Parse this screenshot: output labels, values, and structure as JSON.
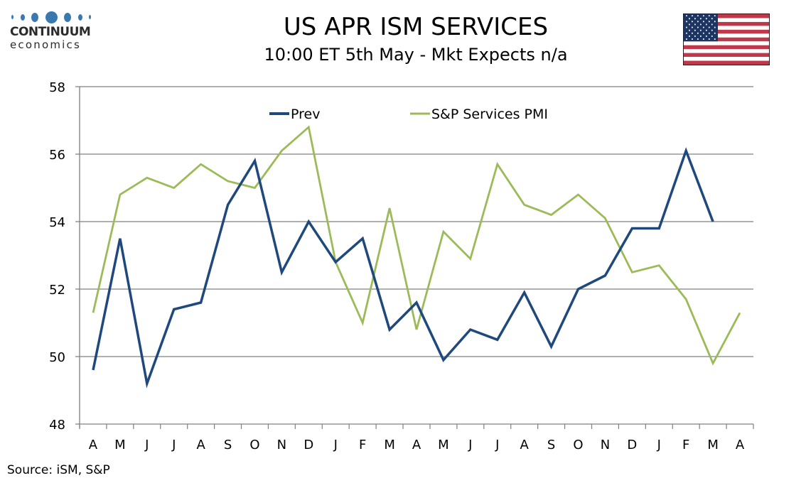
{
  "header": {
    "logo_top": "CONTINUUM",
    "logo_bottom": "economics",
    "title": "US APR ISM SERVICES",
    "subtitle": "10:00 ET 5th May - Mkt Expects n/a",
    "flag": "us-flag-icon"
  },
  "footer": {
    "source": "Source: iSM, S&P"
  },
  "colors": {
    "prev": "#1f497d",
    "sp": "#9bbb59",
    "grid": "#808080",
    "logo": "#3a78b0"
  },
  "chart_data": {
    "type": "line",
    "title": "US APR ISM SERVICES",
    "subtitle": "10:00 ET 5th May - Mkt Expects n/a",
    "xlabel": "",
    "ylabel": "",
    "ylim": [
      48,
      58
    ],
    "yticks": [
      48,
      50,
      52,
      54,
      56,
      58
    ],
    "grid": true,
    "legend_position": "top-center",
    "categories": [
      "A",
      "M",
      "J",
      "J",
      "A",
      "S",
      "O",
      "N",
      "D",
      "J",
      "F",
      "M",
      "A",
      "M",
      "J",
      "J",
      "A",
      "S",
      "O",
      "N",
      "D",
      "J",
      "F",
      "M",
      "A"
    ],
    "series": [
      {
        "name": "Prev",
        "color": "#1f497d",
        "values": [
          49.6,
          53.5,
          49.2,
          51.4,
          51.6,
          54.5,
          55.8,
          52.5,
          54.0,
          52.8,
          53.5,
          50.8,
          51.6,
          49.9,
          50.8,
          50.5,
          51.9,
          50.3,
          52.0,
          52.4,
          53.8,
          53.8,
          56.1,
          54.0,
          null
        ]
      },
      {
        "name": "S&P Services PMI",
        "color": "#9bbb59",
        "values": [
          51.3,
          54.8,
          55.3,
          55.0,
          55.7,
          55.2,
          55.0,
          56.1,
          56.8,
          52.8,
          51.0,
          54.4,
          50.8,
          53.7,
          52.9,
          55.7,
          54.5,
          54.2,
          54.8,
          54.1,
          52.5,
          52.7,
          51.7,
          49.8,
          51.3
        ]
      }
    ]
  }
}
